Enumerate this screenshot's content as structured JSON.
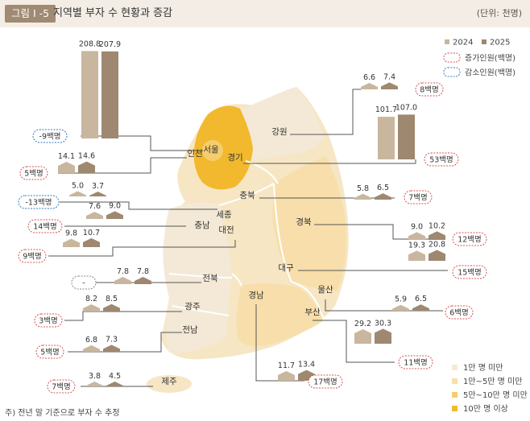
{
  "header": {
    "figure_no": "그림 I -5",
    "title": "지역별 부자 수 현황과 증감",
    "unit": "(단위: 천명)"
  },
  "legend": {
    "years": [
      "2024",
      "2025"
    ],
    "increase": "증가인원(백명)",
    "decrease": "감소인원(백명)",
    "bins": [
      "1만 명 미만",
      "1만~5만 명 미만",
      "5만~10만 명 미만",
      "10만 명 이상"
    ]
  },
  "footnote": "주) 전년 말 기준으로 부자 수 추정",
  "colors": {
    "y2024": "#c8b69e",
    "y2025": "#9e8870",
    "increase": "#d9534f",
    "decrease": "#3a78c4",
    "bin1": "#f3e9d6",
    "bin2": "#f8deaa",
    "bin3": "#f6cd6e",
    "bin4": "#f2b92e"
  },
  "chart_data": {
    "type": "bar",
    "series": [
      {
        "name": "2024"
      },
      {
        "name": "2025"
      }
    ],
    "regions": [
      {
        "name": "서울",
        "v2024": 208.8,
        "v2025": 207.9,
        "change": "-9백명",
        "dir": "down"
      },
      {
        "name": "인천",
        "v2024": 14.1,
        "v2025": 14.6,
        "change": "5백명",
        "dir": "up"
      },
      {
        "name": "경기",
        "v2024": 101.7,
        "v2025": 107.0,
        "change": "53백명",
        "dir": "up"
      },
      {
        "name": "강원",
        "v2024": 6.6,
        "v2025": 7.4,
        "change": "8백명",
        "dir": "up"
      },
      {
        "name": "세종",
        "v2024": 5.0,
        "v2025": 3.7,
        "change": "-13백명",
        "dir": "down"
      },
      {
        "name": "충북",
        "v2024": 5.8,
        "v2025": 6.5,
        "change": "7백명",
        "dir": "up"
      },
      {
        "name": "충남",
        "v2024": 7.6,
        "v2025": 9.0,
        "change": "14백명",
        "dir": "up"
      },
      {
        "name": "대전",
        "v2024": 9.8,
        "v2025": 10.7,
        "change": "9백명",
        "dir": "up"
      },
      {
        "name": "경북",
        "v2024": 9.0,
        "v2025": 10.2,
        "change": "12백명",
        "dir": "up"
      },
      {
        "name": "대구",
        "v2024": 19.3,
        "v2025": 20.8,
        "change": "15백명",
        "dir": "up"
      },
      {
        "name": "전북",
        "v2024": 7.8,
        "v2025": 7.8,
        "change": "-",
        "dir": "none"
      },
      {
        "name": "울산",
        "v2024": 5.9,
        "v2025": 6.5,
        "change": "6백명",
        "dir": "up"
      },
      {
        "name": "광주",
        "v2024": 8.2,
        "v2025": 8.5,
        "change": "3백명",
        "dir": "up"
      },
      {
        "name": "부산",
        "v2024": 29.2,
        "v2025": 30.3,
        "change": "11백명",
        "dir": "up"
      },
      {
        "name": "전남",
        "v2024": 6.8,
        "v2025": 7.3,
        "change": "5백명",
        "dir": "up"
      },
      {
        "name": "경남",
        "v2024": 11.7,
        "v2025": 13.4,
        "change": "17백명",
        "dir": "up"
      },
      {
        "name": "제주",
        "v2024": 3.8,
        "v2025": 4.5,
        "change": "7백명",
        "dir": "up"
      }
    ]
  }
}
